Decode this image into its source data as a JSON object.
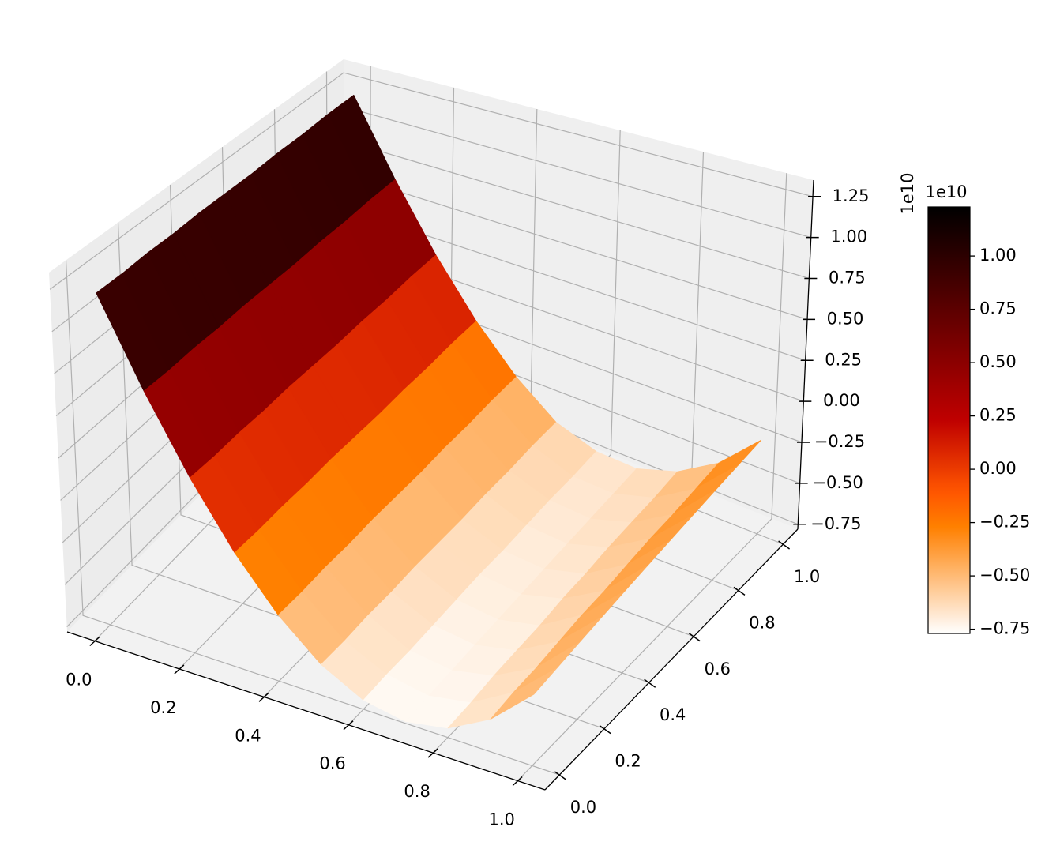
{
  "chart_data": {
    "type": "surface3d",
    "x": [
      0,
      0.1,
      0.2,
      0.3,
      0.4,
      0.5,
      0.6,
      0.7,
      0.8,
      0.9,
      1
    ],
    "y": [
      0,
      0.1,
      0.2,
      0.3,
      0.4,
      0.5,
      0.6,
      0.7,
      0.8,
      0.9,
      1
    ],
    "z": [
      [
        1.19,
        0.67,
        0.23,
        -0.13,
        -0.41,
        -0.61,
        -0.73,
        -0.77,
        -0.73,
        -0.61,
        -0.41
      ],
      [
        1.19,
        0.67,
        0.23,
        -0.13,
        -0.41,
        -0.61,
        -0.72,
        -0.76,
        -0.72,
        -0.59,
        -0.39
      ],
      [
        1.2,
        0.68,
        0.24,
        -0.12,
        -0.4,
        -0.6,
        -0.72,
        -0.75,
        -0.7,
        -0.58,
        -0.37
      ],
      [
        1.2,
        0.68,
        0.24,
        -0.12,
        -0.4,
        -0.6,
        -0.71,
        -0.74,
        -0.69,
        -0.56,
        -0.35
      ],
      [
        1.21,
        0.69,
        0.25,
        -0.11,
        -0.39,
        -0.59,
        -0.7,
        -0.73,
        -0.68,
        -0.54,
        -0.33
      ],
      [
        1.21,
        0.69,
        0.25,
        -0.11,
        -0.39,
        -0.59,
        -0.69,
        -0.72,
        -0.66,
        -0.53,
        -0.31
      ],
      [
        1.21,
        0.69,
        0.25,
        -0.11,
        -0.39,
        -0.59,
        -0.69,
        -0.71,
        -0.65,
        -0.51,
        -0.29
      ],
      [
        1.22,
        0.7,
        0.26,
        -0.1,
        -0.38,
        -0.58,
        -0.68,
        -0.7,
        -0.63,
        -0.49,
        -0.27
      ],
      [
        1.22,
        0.7,
        0.26,
        -0.1,
        -0.38,
        -0.58,
        -0.67,
        -0.69,
        -0.62,
        -0.48,
        -0.25
      ],
      [
        1.23,
        0.71,
        0.27,
        -0.09,
        -0.37,
        -0.57,
        -0.67,
        -0.68,
        -0.61,
        -0.46,
        -0.23
      ],
      [
        1.23,
        0.71,
        0.27,
        -0.09,
        -0.37,
        -0.57,
        -0.66,
        -0.67,
        -0.59,
        -0.44,
        -0.21
      ]
    ],
    "xlim": [
      -0.065,
      1.065
    ],
    "ylim": [
      -0.065,
      1.065
    ],
    "zlim": [
      -0.78,
      1.35
    ],
    "xticks": [
      {
        "value": 0,
        "label": "0.0"
      },
      0.2,
      0.4,
      0.6,
      0.8,
      {
        "value": 1,
        "label": "1.0"
      }
    ],
    "yticks": [
      {
        "value": 0,
        "label": "0.0"
      },
      0.2,
      0.4,
      0.6,
      0.8,
      {
        "value": 1,
        "label": "1.0"
      }
    ],
    "zticks": [
      {
        "value": -0.75,
        "label": "−0.75"
      },
      {
        "value": -0.5,
        "label": "−0.50"
      },
      {
        "value": -0.25,
        "label": "−0.25"
      },
      {
        "value": 0,
        "label": "0.00"
      },
      0.25,
      {
        "value": 0.5,
        "label": "0.50"
      },
      0.75,
      {
        "value": 1,
        "label": "1.00"
      },
      1.25
    ],
    "z_offset_text": "1e10",
    "colormap": "gist_heat_r",
    "grid": true,
    "colorbar": {
      "clim": [
        -0.77,
        1.23
      ],
      "ticks": [
        {
          "value": -0.75,
          "label": "−0.75"
        },
        {
          "value": -0.5,
          "label": "−0.50"
        },
        {
          "value": -0.25,
          "label": "−0.25"
        },
        {
          "value": 0,
          "label": "0.00"
        },
        0.25,
        {
          "value": 0.5,
          "label": "0.50"
        },
        0.75,
        {
          "value": 1,
          "label": "1.00"
        }
      ],
      "offset_text": "1e10"
    }
  }
}
